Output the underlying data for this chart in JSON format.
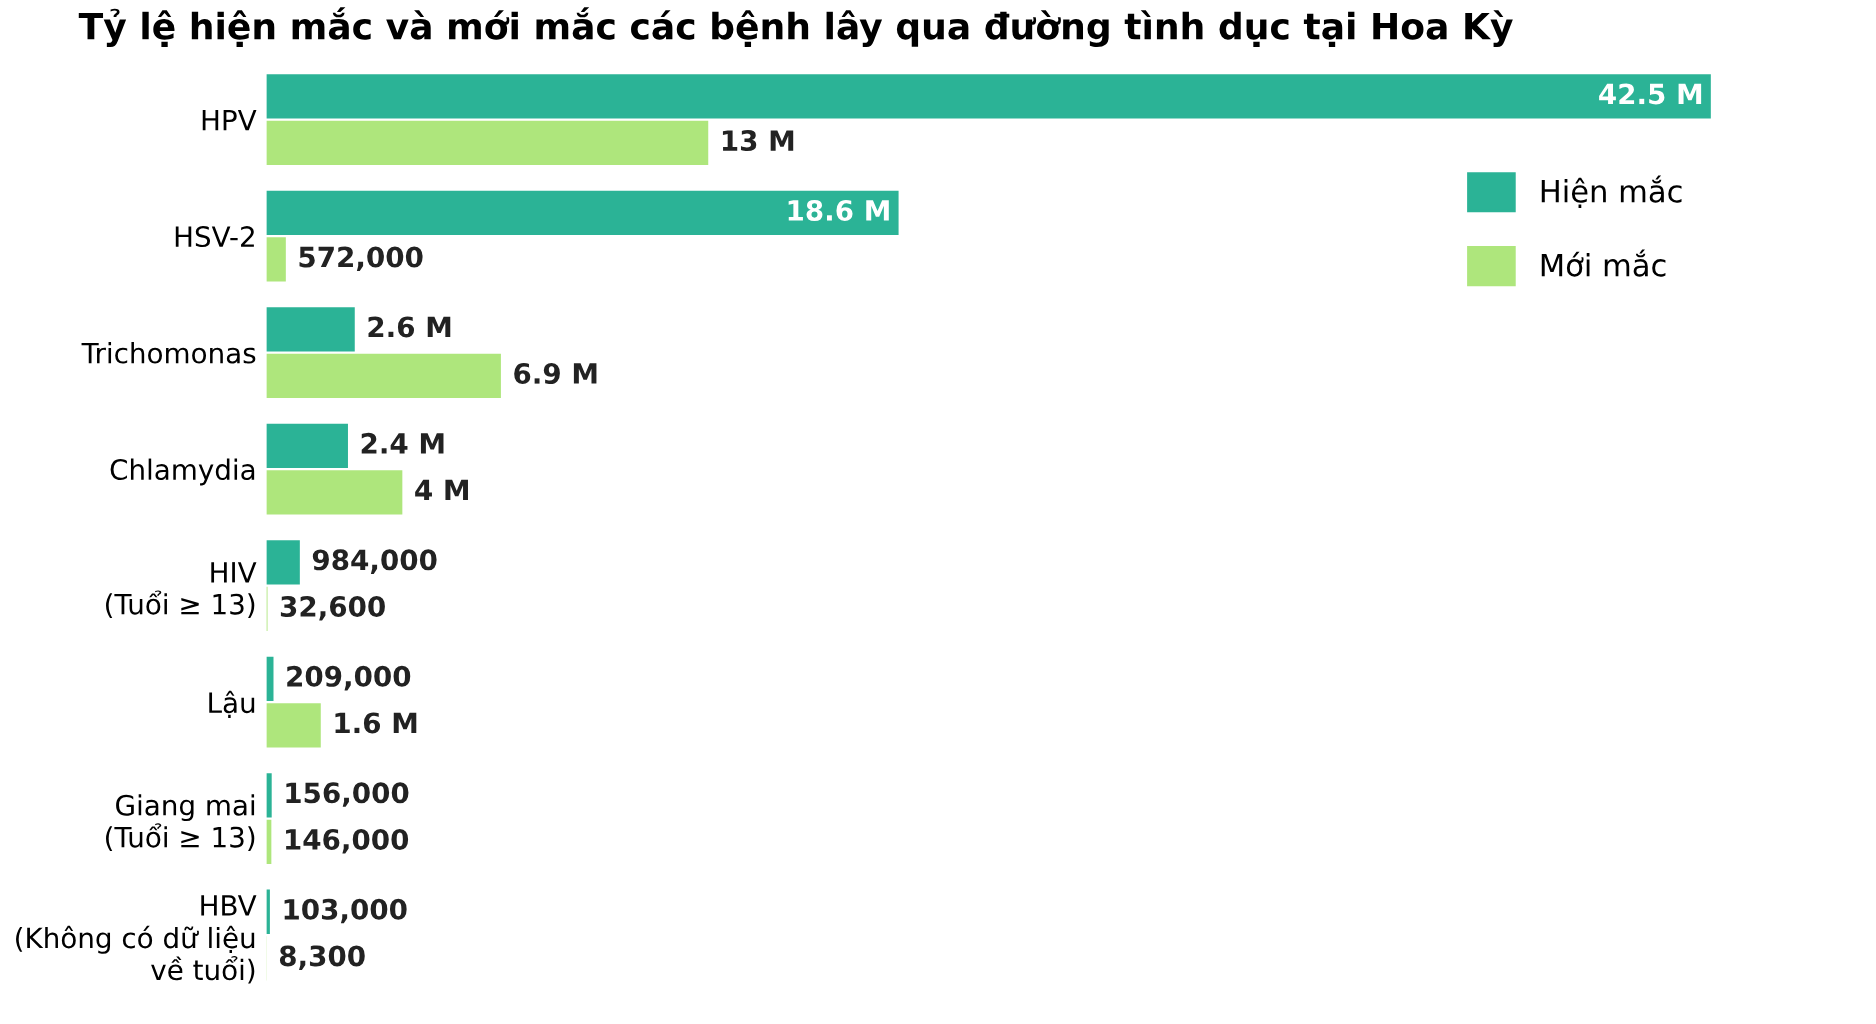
{
  "chart_data": {
    "type": "bar",
    "orientation": "horizontal",
    "title": "Tỷ lệ hiện mắc và mới mắc các bệnh lây qua đường tình dục tại Hoa Kỳ",
    "categories": [
      "HPV",
      "HSV-2",
      "Trichomonas",
      "Chlamydia",
      "HIV\n(Tuổi ≥ 13)",
      "Lậu",
      "Giang mai\n(Tuổi ≥ 13)",
      "HBV\n(Không có dữ liệu\nvề tuổi)"
    ],
    "series": [
      {
        "name": "Hiện mắc",
        "color": "#2bb396",
        "values": [
          42500000,
          18600000,
          2600000,
          2400000,
          984000,
          209000,
          156000,
          103000
        ],
        "value_labels": [
          "42.5 M",
          "18.6 M",
          "2.6 M",
          "2.4 M",
          "984,000",
          "209,000",
          "156,000",
          "103,000"
        ]
      },
      {
        "name": "Mới mắc",
        "color": "#aee67c",
        "values": [
          13000000,
          572000,
          6900000,
          4000000,
          32600,
          1600000,
          146000,
          8300
        ],
        "value_labels": [
          "13 M",
          "572,000",
          "6.9 M",
          "4 M",
          "32,600",
          "1.6 M",
          "146,000",
          "8,300"
        ]
      }
    ],
    "legend": "center right",
    "grid": false,
    "tick_labels": "y"
  }
}
